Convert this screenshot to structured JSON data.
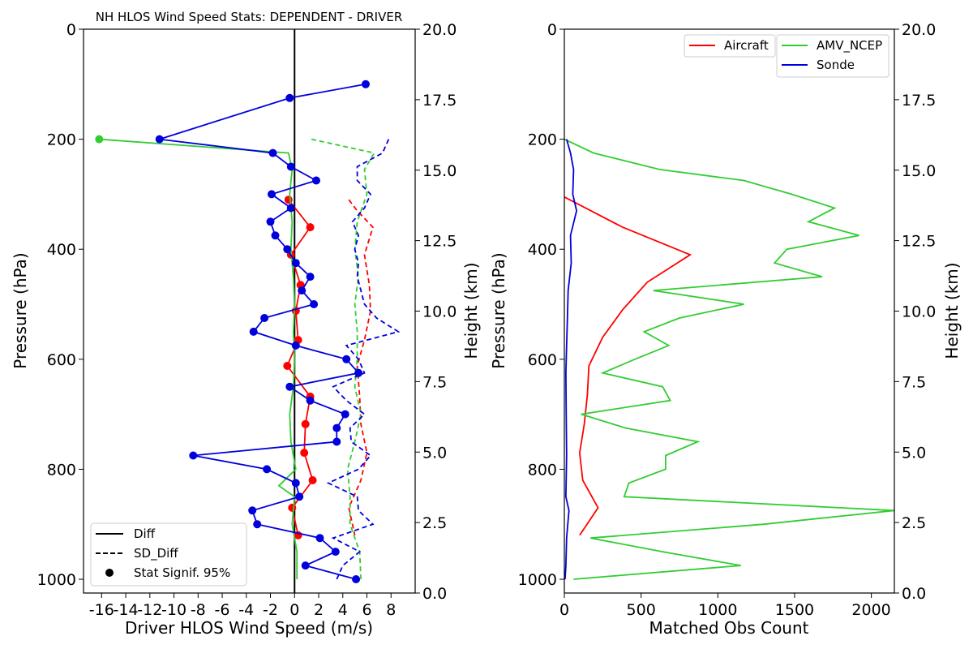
{
  "chart_data": [
    {
      "type": "line",
      "title": "NH HLOS Wind Speed Stats: DEPENDENT - DRIVER",
      "xlabel": "Driver HLOS Wind Speed (m/s)",
      "ylabel": "Pressure (hPa)",
      "y2label": "Height (km)",
      "xlim": [
        -17.5,
        10
      ],
      "ylim": [
        1025,
        0
      ],
      "y2lim": [
        0,
        20
      ],
      "xticks": [
        -16,
        -14,
        -12,
        -10,
        -8,
        -6,
        -4,
        -2,
        0,
        2,
        4,
        6,
        8
      ],
      "yticks": [
        0,
        200,
        400,
        600,
        800,
        1000
      ],
      "y2ticks": [
        "0.0",
        "2.5",
        "5.0",
        "7.5",
        "10.0",
        "12.5",
        "15.0",
        "17.5",
        "20.0"
      ],
      "zero_line": 0,
      "legend": {
        "placement": "lower-left",
        "entries": [
          {
            "label": "Diff",
            "style": "solid"
          },
          {
            "label": "SD_Diff",
            "style": "dashed"
          },
          {
            "label": "Stat Signif. 95%",
            "style": "marker"
          }
        ]
      },
      "series": [
        {
          "name": "Aircraft",
          "color": "#ff0000",
          "diff": [
            {
              "p": 310,
              "x": -0.5,
              "sig": true
            },
            {
              "p": 360,
              "x": 1.3,
              "sig": true
            },
            {
              "p": 410,
              "x": -0.3,
              "sig": true
            },
            {
              "p": 465,
              "x": 0.5,
              "sig": true
            },
            {
              "p": 512,
              "x": 0.1,
              "sig": true
            },
            {
              "p": 565,
              "x": 0.3,
              "sig": true
            },
            {
              "p": 612,
              "x": -0.6,
              "sig": true
            },
            {
              "p": 668,
              "x": 1.3,
              "sig": true
            },
            {
              "p": 718,
              "x": 0.9,
              "sig": true
            },
            {
              "p": 770,
              "x": 0.8,
              "sig": true
            },
            {
              "p": 820,
              "x": 1.5,
              "sig": true
            },
            {
              "p": 870,
              "x": -0.2,
              "sig": true
            },
            {
              "p": 920,
              "x": 0.3,
              "sig": true
            }
          ],
          "sd_diff": [
            {
              "p": 310,
              "x": 4.5
            },
            {
              "p": 330,
              "x": 5.2
            },
            {
              "p": 360,
              "x": 6.5
            },
            {
              "p": 410,
              "x": 5.8
            },
            {
              "p": 465,
              "x": 6.2
            },
            {
              "p": 512,
              "x": 6.3
            },
            {
              "p": 565,
              "x": 5.8
            },
            {
              "p": 612,
              "x": 5.2
            },
            {
              "p": 668,
              "x": 5.4
            },
            {
              "p": 718,
              "x": 5.5
            },
            {
              "p": 770,
              "x": 6.0
            },
            {
              "p": 820,
              "x": 5.5
            },
            {
              "p": 870,
              "x": 4.5
            },
            {
              "p": 920,
              "x": 5.0
            }
          ]
        },
        {
          "name": "AMV_NCEP",
          "color": "#33cc33",
          "diff": [
            {
              "p": 200,
              "x": -16.2,
              "sig": true
            },
            {
              "p": 225,
              "x": -0.5,
              "sig": false
            },
            {
              "p": 255,
              "x": -0.2,
              "sig": false
            },
            {
              "p": 300,
              "x": -0.4,
              "sig": false
            },
            {
              "p": 350,
              "x": -0.2,
              "sig": false
            },
            {
              "p": 400,
              "x": -0.3,
              "sig": false
            },
            {
              "p": 450,
              "x": -0.1,
              "sig": false
            },
            {
              "p": 500,
              "x": 0.0,
              "sig": false
            },
            {
              "p": 550,
              "x": -0.1,
              "sig": false
            },
            {
              "p": 600,
              "x": 0.0,
              "sig": false
            },
            {
              "p": 650,
              "x": -0.1,
              "sig": false
            },
            {
              "p": 700,
              "x": -0.4,
              "sig": false
            },
            {
              "p": 750,
              "x": -0.3,
              "sig": false
            },
            {
              "p": 800,
              "x": 0.1,
              "sig": false
            },
            {
              "p": 830,
              "x": -1.3,
              "sig": false
            },
            {
              "p": 850,
              "x": 0.0,
              "sig": false
            },
            {
              "p": 900,
              "x": -0.2,
              "sig": false
            },
            {
              "p": 950,
              "x": 0.2,
              "sig": false
            },
            {
              "p": 1000,
              "x": 0.2,
              "sig": false
            }
          ],
          "sd_diff": [
            {
              "p": 200,
              "x": 1.4
            },
            {
              "p": 225,
              "x": 6.6
            },
            {
              "p": 255,
              "x": 5.8
            },
            {
              "p": 300,
              "x": 6.0
            },
            {
              "p": 350,
              "x": 5.2
            },
            {
              "p": 400,
              "x": 5.0
            },
            {
              "p": 450,
              "x": 5.3
            },
            {
              "p": 500,
              "x": 5.0
            },
            {
              "p": 550,
              "x": 5.2
            },
            {
              "p": 600,
              "x": 5.2
            },
            {
              "p": 650,
              "x": 5.0
            },
            {
              "p": 700,
              "x": 5.5
            },
            {
              "p": 750,
              "x": 5.0
            },
            {
              "p": 800,
              "x": 4.4
            },
            {
              "p": 850,
              "x": 4.6
            },
            {
              "p": 900,
              "x": 4.6
            },
            {
              "p": 950,
              "x": 5.4
            },
            {
              "p": 1000,
              "x": 5.5
            }
          ]
        },
        {
          "name": "Sonde",
          "color": "#0000dd",
          "diff": [
            {
              "p": 100,
              "x": 5.9,
              "sig": true
            },
            {
              "p": 125,
              "x": -0.4,
              "sig": true
            },
            {
              "p": 200,
              "x": -11.2,
              "sig": true
            },
            {
              "p": 225,
              "x": -1.8,
              "sig": true
            },
            {
              "p": 250,
              "x": -0.3,
              "sig": true
            },
            {
              "p": 275,
              "x": 1.8,
              "sig": true
            },
            {
              "p": 300,
              "x": -1.9,
              "sig": true
            },
            {
              "p": 325,
              "x": -0.3,
              "sig": true
            },
            {
              "p": 350,
              "x": -2.0,
              "sig": true
            },
            {
              "p": 375,
              "x": -1.6,
              "sig": true
            },
            {
              "p": 400,
              "x": -0.6,
              "sig": true
            },
            {
              "p": 425,
              "x": 0.1,
              "sig": true
            },
            {
              "p": 450,
              "x": 1.3,
              "sig": true
            },
            {
              "p": 475,
              "x": 0.6,
              "sig": true
            },
            {
              "p": 500,
              "x": 1.6,
              "sig": true
            },
            {
              "p": 525,
              "x": -2.5,
              "sig": true
            },
            {
              "p": 550,
              "x": -3.4,
              "sig": true
            },
            {
              "p": 575,
              "x": 0.1,
              "sig": true
            },
            {
              "p": 600,
              "x": 4.3,
              "sig": true
            },
            {
              "p": 625,
              "x": 5.3,
              "sig": true
            },
            {
              "p": 650,
              "x": -0.4,
              "sig": true
            },
            {
              "p": 675,
              "x": 1.3,
              "sig": true
            },
            {
              "p": 700,
              "x": 4.2,
              "sig": true
            },
            {
              "p": 725,
              "x": 3.5,
              "sig": true
            },
            {
              "p": 750,
              "x": 3.5,
              "sig": true
            },
            {
              "p": 775,
              "x": -8.4,
              "sig": true
            },
            {
              "p": 800,
              "x": -2.3,
              "sig": true
            },
            {
              "p": 825,
              "x": 0.1,
              "sig": true
            },
            {
              "p": 850,
              "x": 0.4,
              "sig": true
            },
            {
              "p": 875,
              "x": -3.5,
              "sig": true
            },
            {
              "p": 900,
              "x": -3.1,
              "sig": true
            },
            {
              "p": 925,
              "x": 2.1,
              "sig": true
            },
            {
              "p": 950,
              "x": 3.4,
              "sig": true
            },
            {
              "p": 975,
              "x": 0.9,
              "sig": true
            },
            {
              "p": 1000,
              "x": 5.1,
              "sig": true
            }
          ],
          "sd_diff": [
            {
              "p": 200,
              "x": 7.8
            },
            {
              "p": 225,
              "x": 7.3
            },
            {
              "p": 250,
              "x": 5.2
            },
            {
              "p": 275,
              "x": 5.2
            },
            {
              "p": 300,
              "x": 6.3
            },
            {
              "p": 325,
              "x": 5.8
            },
            {
              "p": 350,
              "x": 4.8
            },
            {
              "p": 375,
              "x": 5.3
            },
            {
              "p": 400,
              "x": 5.0
            },
            {
              "p": 425,
              "x": 5.3
            },
            {
              "p": 450,
              "x": 5.2
            },
            {
              "p": 475,
              "x": 5.5
            },
            {
              "p": 500,
              "x": 5.8
            },
            {
              "p": 525,
              "x": 6.8
            },
            {
              "p": 550,
              "x": 8.6
            },
            {
              "p": 575,
              "x": 4.3
            },
            {
              "p": 600,
              "x": 5.3
            },
            {
              "p": 625,
              "x": 5.8
            },
            {
              "p": 650,
              "x": 3.2
            },
            {
              "p": 675,
              "x": 4.3
            },
            {
              "p": 700,
              "x": 5.8
            },
            {
              "p": 725,
              "x": 4.6
            },
            {
              "p": 750,
              "x": 4.7
            },
            {
              "p": 775,
              "x": 6.3
            },
            {
              "p": 800,
              "x": 5.3
            },
            {
              "p": 825,
              "x": 2.8
            },
            {
              "p": 850,
              "x": 5.2
            },
            {
              "p": 875,
              "x": 5.3
            },
            {
              "p": 900,
              "x": 6.5
            },
            {
              "p": 925,
              "x": 3.2
            },
            {
              "p": 950,
              "x": 5.4
            },
            {
              "p": 975,
              "x": 4.0
            },
            {
              "p": 1000,
              "x": 3.5
            }
          ]
        }
      ]
    },
    {
      "type": "line",
      "xlabel": "Matched Obs Count",
      "ylabel": "Pressure (hPa)",
      "y2label": "Height (km)",
      "xlim": [
        0,
        2150
      ],
      "ylim": [
        1025,
        0
      ],
      "y2lim": [
        0,
        20
      ],
      "xticks": [
        0,
        500,
        1000,
        1500,
        2000
      ],
      "yticks": [
        0,
        200,
        400,
        600,
        800,
        1000
      ],
      "y2ticks": [
        "0.0",
        "2.5",
        "5.0",
        "7.5",
        "10.0",
        "12.5",
        "15.0",
        "17.5",
        "20.0"
      ],
      "legend": {
        "placement": "top-right"
      },
      "series": [
        {
          "name": "Aircraft",
          "color": "#ff0000",
          "points": [
            {
              "p": 305,
              "x": 0
            },
            {
              "p": 360,
              "x": 380
            },
            {
              "p": 410,
              "x": 820
            },
            {
              "p": 460,
              "x": 540
            },
            {
              "p": 510,
              "x": 380
            },
            {
              "p": 560,
              "x": 250
            },
            {
              "p": 612,
              "x": 160
            },
            {
              "p": 665,
              "x": 150
            },
            {
              "p": 718,
              "x": 130
            },
            {
              "p": 770,
              "x": 100
            },
            {
              "p": 820,
              "x": 120
            },
            {
              "p": 870,
              "x": 220
            },
            {
              "p": 920,
              "x": 100
            }
          ]
        },
        {
          "name": "AMV_NCEP",
          "color": "#33cc33",
          "points": [
            {
              "p": 200,
              "x": 0
            },
            {
              "p": 225,
              "x": 190
            },
            {
              "p": 255,
              "x": 620
            },
            {
              "p": 275,
              "x": 1170
            },
            {
              "p": 300,
              "x": 1480
            },
            {
              "p": 325,
              "x": 1760
            },
            {
              "p": 350,
              "x": 1590
            },
            {
              "p": 375,
              "x": 1920
            },
            {
              "p": 400,
              "x": 1450
            },
            {
              "p": 425,
              "x": 1370
            },
            {
              "p": 450,
              "x": 1680
            },
            {
              "p": 475,
              "x": 580
            },
            {
              "p": 500,
              "x": 1170
            },
            {
              "p": 525,
              "x": 750
            },
            {
              "p": 550,
              "x": 520
            },
            {
              "p": 575,
              "x": 680
            },
            {
              "p": 600,
              "x": 460
            },
            {
              "p": 625,
              "x": 250
            },
            {
              "p": 650,
              "x": 640
            },
            {
              "p": 675,
              "x": 690
            },
            {
              "p": 700,
              "x": 110
            },
            {
              "p": 725,
              "x": 400
            },
            {
              "p": 750,
              "x": 870
            },
            {
              "p": 775,
              "x": 660
            },
            {
              "p": 800,
              "x": 660
            },
            {
              "p": 825,
              "x": 420
            },
            {
              "p": 850,
              "x": 390
            },
            {
              "p": 875,
              "x": 2150
            },
            {
              "p": 900,
              "x": 1300
            },
            {
              "p": 925,
              "x": 170
            },
            {
              "p": 950,
              "x": 640
            },
            {
              "p": 975,
              "x": 1150
            },
            {
              "p": 1000,
              "x": 60
            }
          ]
        },
        {
          "name": "Sonde",
          "color": "#0000dd",
          "points": [
            {
              "p": 200,
              "x": 15
            },
            {
              "p": 225,
              "x": 40
            },
            {
              "p": 255,
              "x": 60
            },
            {
              "p": 300,
              "x": 55
            },
            {
              "p": 330,
              "x": 80
            },
            {
              "p": 375,
              "x": 40
            },
            {
              "p": 425,
              "x": 45
            },
            {
              "p": 475,
              "x": 25
            },
            {
              "p": 525,
              "x": 20
            },
            {
              "p": 575,
              "x": 15
            },
            {
              "p": 625,
              "x": 10
            },
            {
              "p": 700,
              "x": 12
            },
            {
              "p": 775,
              "x": 15
            },
            {
              "p": 850,
              "x": 10
            },
            {
              "p": 875,
              "x": 30
            },
            {
              "p": 925,
              "x": 15
            },
            {
              "p": 975,
              "x": 10
            },
            {
              "p": 1000,
              "x": 5
            }
          ]
        }
      ]
    }
  ]
}
